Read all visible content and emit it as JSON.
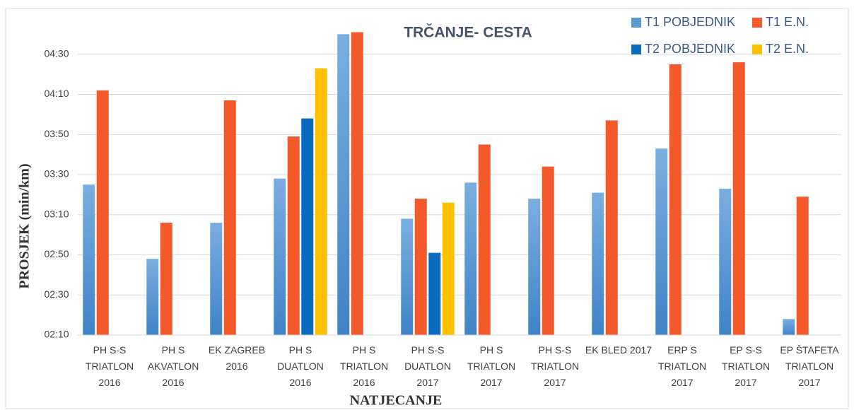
{
  "chart_data": {
    "type": "bar",
    "title": "TRČANJE- CESTA",
    "xlabel": "NATJECANJE",
    "ylabel": "PROSJEK (min/km)",
    "categories": [
      [
        "PH S-S",
        "TRIATLON",
        "2016"
      ],
      [
        "PH S",
        "AKVATLON",
        "2016"
      ],
      [
        "EK ZAGREB",
        "2016"
      ],
      [
        "PH S",
        "DUATLON",
        "2016"
      ],
      [
        "PH S",
        "TRIATLON",
        "2016"
      ],
      [
        "PH S-S",
        "DUATLON",
        "2017"
      ],
      [
        "PH S",
        "TRIATLON",
        "2017"
      ],
      [
        "PH S-S",
        "TRIATLON",
        "2017"
      ],
      [
        "EK BLED 2017"
      ],
      [
        "ERP S",
        "TRIATLON",
        "2017"
      ],
      [
        "EP S-S",
        "TRIATLON",
        "2017"
      ],
      [
        "EP ŠTAFETA",
        "TRIATLON",
        "2017"
      ]
    ],
    "series": [
      {
        "name": "T1 POBJEDNIK",
        "color": "#5b9bd5",
        "values": [
          205,
          168,
          186,
          208,
          280,
          188,
          206,
          198,
          201,
          223,
          203,
          138
        ]
      },
      {
        "name": "T1 E.N.",
        "color": "#f4592a",
        "values": [
          252,
          186,
          247,
          229,
          281,
          198,
          225,
          214,
          237,
          265,
          266,
          199
        ]
      },
      {
        "name": "T2 POBJEDNIK",
        "color": "#0a6cc0",
        "values": [
          null,
          null,
          null,
          238,
          null,
          171,
          null,
          null,
          null,
          null,
          null,
          null
        ]
      },
      {
        "name": "T2 E.N.",
        "color": "#ffc000",
        "values": [
          null,
          null,
          null,
          263,
          null,
          196,
          null,
          null,
          null,
          null,
          null,
          null
        ]
      }
    ],
    "ylim": [
      130,
      290
    ],
    "yticks": [
      {
        "value": 130,
        "label": "02:10"
      },
      {
        "value": 150,
        "label": "02:30"
      },
      {
        "value": 170,
        "label": "02:50"
      },
      {
        "value": 190,
        "label": "03:10"
      },
      {
        "value": 210,
        "label": "03:30"
      },
      {
        "value": 230,
        "label": "03:50"
      },
      {
        "value": 250,
        "label": "04:10"
      },
      {
        "value": 270,
        "label": "04:30"
      }
    ],
    "grid": true,
    "legend": "top-right"
  }
}
